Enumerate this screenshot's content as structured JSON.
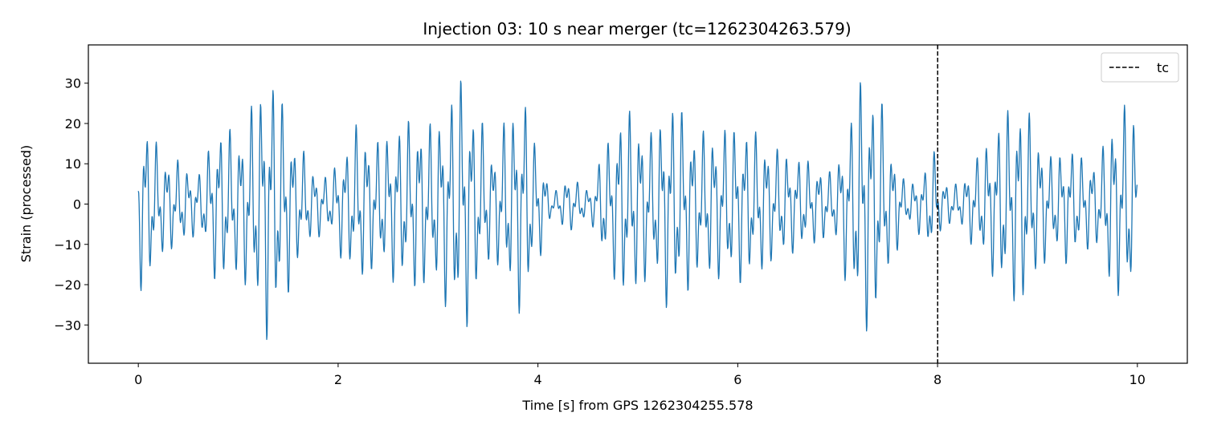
{
  "chart_data": {
    "type": "line",
    "title": "Injection 03: 10 s near merger (tc=1262304263.579)",
    "xlabel": "Time [s] from GPS 1262304255.578",
    "ylabel": "Strain (processed)",
    "xlim": [
      -0.5,
      10.5
    ],
    "ylim": [
      -39.5,
      39.5
    ],
    "xticks": [
      0,
      2,
      4,
      6,
      8,
      10
    ],
    "xtick_labels": [
      "0",
      "2",
      "4",
      "6",
      "8",
      "10"
    ],
    "yticks": [
      -30,
      -20,
      -10,
      0,
      10,
      20,
      30
    ],
    "ytick_labels": [
      "−30",
      "−20",
      "−10",
      "0",
      "10",
      "20",
      "30"
    ],
    "grid": false,
    "legend_position": "top-right",
    "series": [
      {
        "name": "",
        "color": "#1f77b4",
        "sample_interval_s": 0.00390625,
        "envelope": {
          "t": [
            0,
            0.3,
            0.6,
            0.8,
            1.0,
            1.15,
            1.3,
            1.45,
            1.6,
            1.75,
            1.9,
            2.05,
            2.2,
            2.4,
            2.6,
            2.8,
            2.95,
            3.1,
            3.25,
            3.4,
            3.55,
            3.7,
            3.85,
            4.0,
            4.15,
            4.3,
            4.5,
            4.7,
            4.85,
            5.0,
            5.15,
            5.3,
            5.45,
            5.6,
            5.8,
            6.0,
            6.2,
            6.4,
            6.6,
            6.8,
            6.95,
            7.1,
            7.25,
            7.4,
            7.55,
            7.7,
            7.85,
            7.95,
            8.05,
            8.2,
            8.4,
            8.55,
            8.7,
            8.85,
            9.0,
            9.15,
            9.3,
            9.45,
            9.6,
            9.75,
            9.9,
            10.0
          ],
          "a": [
            22,
            12,
            8,
            20,
            18,
            25,
            34,
            26,
            15,
            9,
            7,
            14,
            20,
            16,
            20,
            22,
            20,
            26,
            33,
            22,
            14,
            22,
            28,
            14,
            3,
            7,
            4,
            16,
            24,
            22,
            18,
            26,
            24,
            18,
            19,
            20,
            18,
            14,
            12,
            10,
            8,
            20,
            33,
            28,
            14,
            5,
            8,
            14,
            6,
            5,
            12,
            18,
            24,
            26,
            18,
            12,
            15,
            12,
            11,
            22,
            26,
            20
          ]
        },
        "carrier_frequencies_hz": [
          9.5,
          23
        ],
        "carrier_weights": [
          0.62,
          0.38
        ]
      },
      {
        "name": "tc",
        "color": "#000000",
        "style": "dashed",
        "x": 8.001
      }
    ]
  }
}
